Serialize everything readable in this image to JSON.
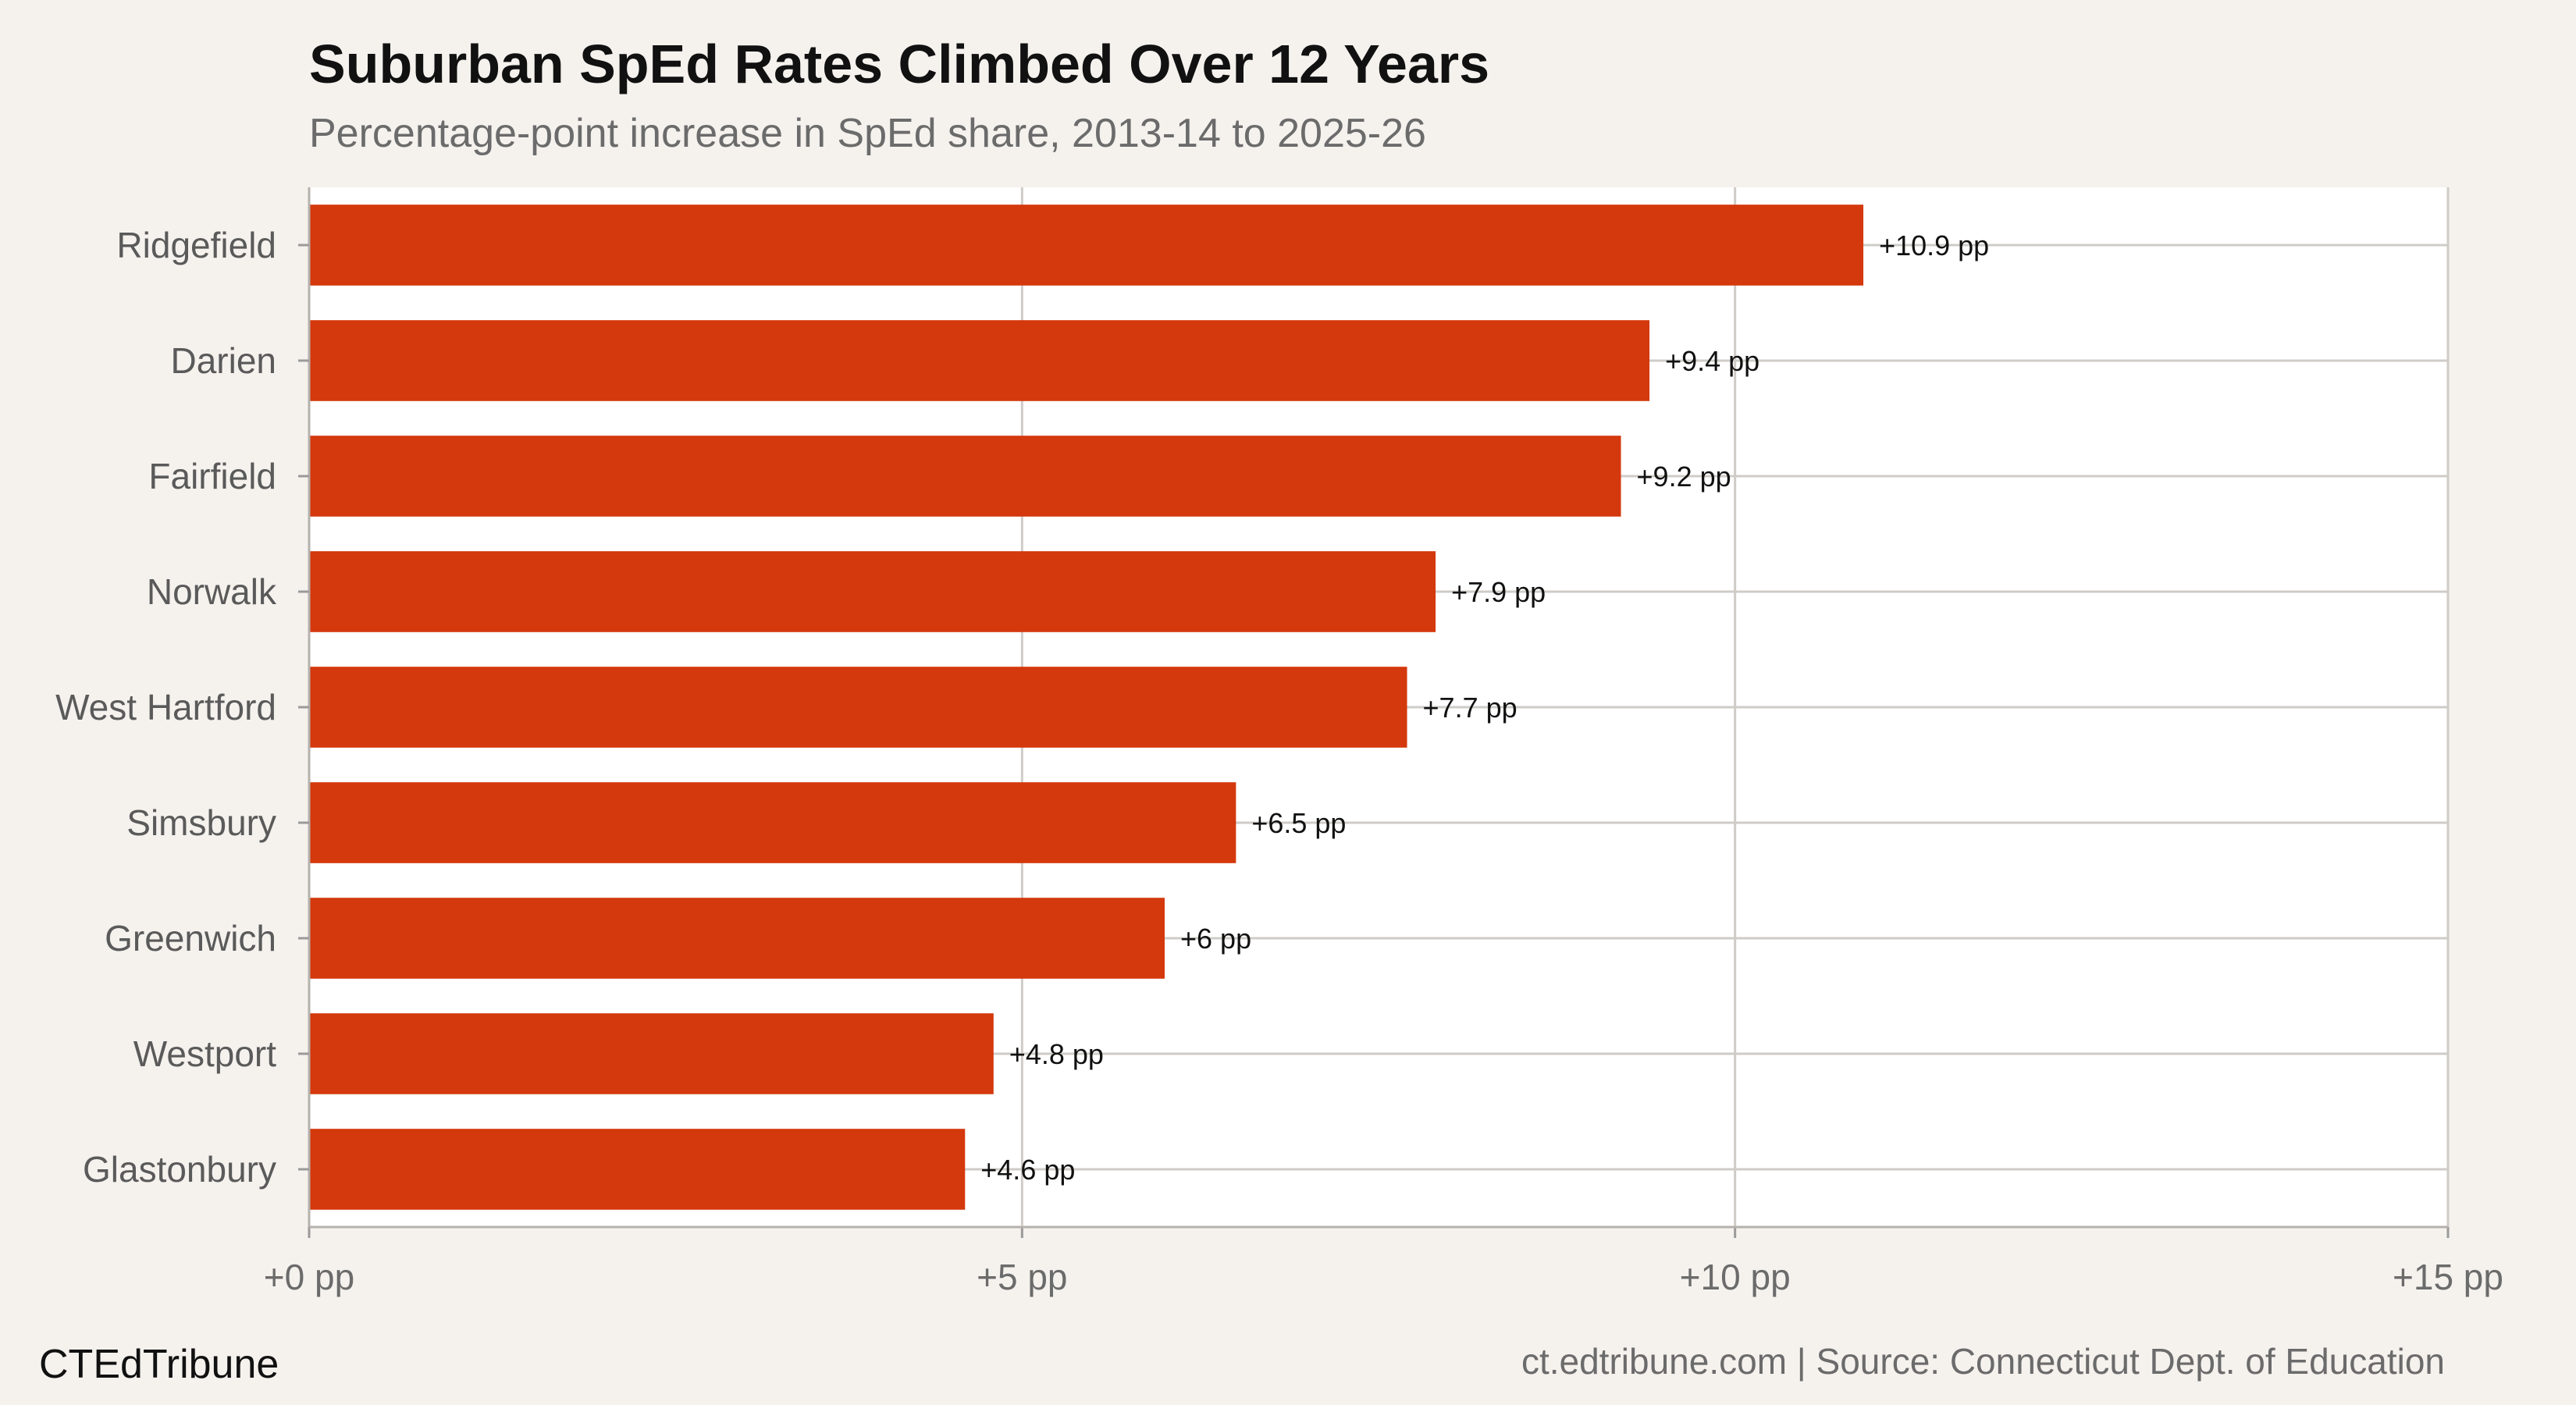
{
  "chart_data": {
    "type": "bar",
    "orientation": "horizontal",
    "title": "Suburban SpEd Rates Climbed Over 12 Years",
    "subtitle": "Percentage-point increase in SpEd share, 2013-14 to 2025-26",
    "categories": [
      "Ridgefield",
      "Darien",
      "Fairfield",
      "Norwalk",
      "West Hartford",
      "Simsbury",
      "Greenwich",
      "Westport",
      "Glastonbury"
    ],
    "values": [
      10.9,
      9.4,
      9.2,
      7.9,
      7.7,
      6.5,
      6.0,
      4.8,
      4.6
    ],
    "data_labels": [
      "+10.9 pp",
      "+9.4 pp",
      "+9.2 pp",
      "+7.9 pp",
      "+7.7 pp",
      "+6.5 pp",
      "+6 pp",
      "+4.8 pp",
      "+4.6 pp"
    ],
    "xlim": [
      0,
      15
    ],
    "x_ticks": [
      0,
      5,
      10,
      15
    ],
    "x_tick_labels": [
      "+0 pp",
      "+5 pp",
      "+10 pp",
      "+15 pp"
    ],
    "xlabel": "",
    "ylabel": "",
    "grid": true,
    "legend": "none",
    "colors": {
      "bar": "#d4380d",
      "panel": "#ffffff",
      "background": "#f5f2ee",
      "grid": "#cfccc8"
    }
  },
  "footer": {
    "brand": "CTEdTribune",
    "source": "ct.edtribune.com | Source: Connecticut Dept. of Education"
  }
}
